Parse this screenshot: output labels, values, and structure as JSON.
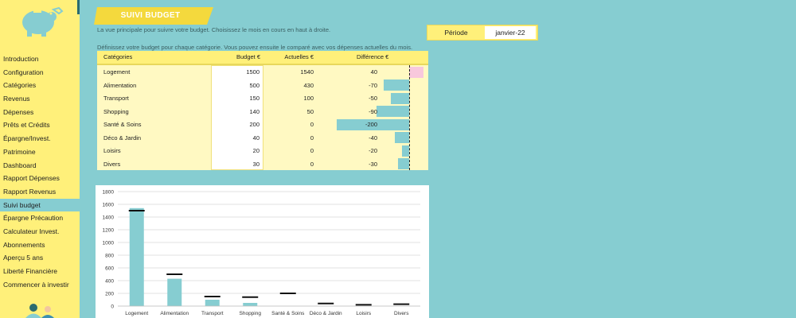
{
  "sidebar": {
    "logo_icon": "piggy-bank-icon",
    "items": [
      {
        "label": "Introduction"
      },
      {
        "label": "Configuration"
      },
      {
        "label": "Catégories"
      },
      {
        "label": "Revenus"
      },
      {
        "label": "Dépenses"
      },
      {
        "label": "Prêts et Crédits"
      },
      {
        "label": "Épargne/Invest."
      },
      {
        "label": "Patrimoine"
      },
      {
        "label": "Dashboard"
      },
      {
        "label": "Rapport Dépenses"
      },
      {
        "label": "Rapport Revenus"
      },
      {
        "label": "Suivi budget"
      },
      {
        "label": "Épargne Précaution"
      },
      {
        "label": "Calculateur Invest."
      },
      {
        "label": "Abonnements"
      },
      {
        "label": "Aperçu 5 ans"
      },
      {
        "label": "Liberté Financière"
      },
      {
        "label": "Commencer à investir"
      }
    ],
    "active_item": "Suivi budget"
  },
  "header": {
    "title": "SUIVI BUDGET",
    "subtitle": "La vue principale pour suivre votre budget. Choisissez le mois en cours en haut à droite."
  },
  "period": {
    "label": "Période",
    "value": "janvier-22"
  },
  "table": {
    "intro": "Définissez votre budget pour chaque catégorie. Vous pouvez ensuite le comparé avec vos dépenses actuelles du mois.",
    "headers": {
      "category": "Catégories",
      "budget": "Budget €",
      "actual": "Actuelles €",
      "diff": "Différence €"
    },
    "rows": [
      {
        "category": "Logement",
        "budget": "1500",
        "actual": "1540",
        "diff": "40"
      },
      {
        "category": "Alimentation",
        "budget": "500",
        "actual": "430",
        "diff": "-70"
      },
      {
        "category": "Transport",
        "budget": "150",
        "actual": "100",
        "diff": "-50"
      },
      {
        "category": "Shopping",
        "budget": "140",
        "actual": "50",
        "diff": "-90"
      },
      {
        "category": "Santé & Soins",
        "budget": "200",
        "actual": "0",
        "diff": "-200"
      },
      {
        "category": "Déco & Jardin",
        "budget": "40",
        "actual": "0",
        "diff": "-40"
      },
      {
        "category": "Loisirs",
        "budget": "20",
        "actual": "0",
        "diff": "-20"
      },
      {
        "category": "Divers",
        "budget": "30",
        "actual": "0",
        "diff": "-30"
      }
    ]
  },
  "colors": {
    "accent": "#fff07a",
    "teal": "#86cdd1",
    "positive": "#f8c8dc",
    "banner": "#f4d93d"
  },
  "chart_data": {
    "type": "bar",
    "categories": [
      "Logement",
      "Alimentation",
      "Transport",
      "Shopping",
      "Santé & Soins",
      "Déco & Jardin",
      "Loisirs",
      "Divers"
    ],
    "series": [
      {
        "values": [
          1540,
          430,
          100,
          50,
          0,
          0,
          0,
          0
        ]
      },
      {
        "values": [
          1500,
          500,
          150,
          140,
          200,
          40,
          20,
          30
        ]
      }
    ],
    "y_ticks": [
      "0",
      "200",
      "400",
      "600",
      "800",
      "1000",
      "1200",
      "1400",
      "1600",
      "1800"
    ],
    "ylim": [
      0,
      1800
    ],
    "grid": true,
    "legend": "none"
  }
}
